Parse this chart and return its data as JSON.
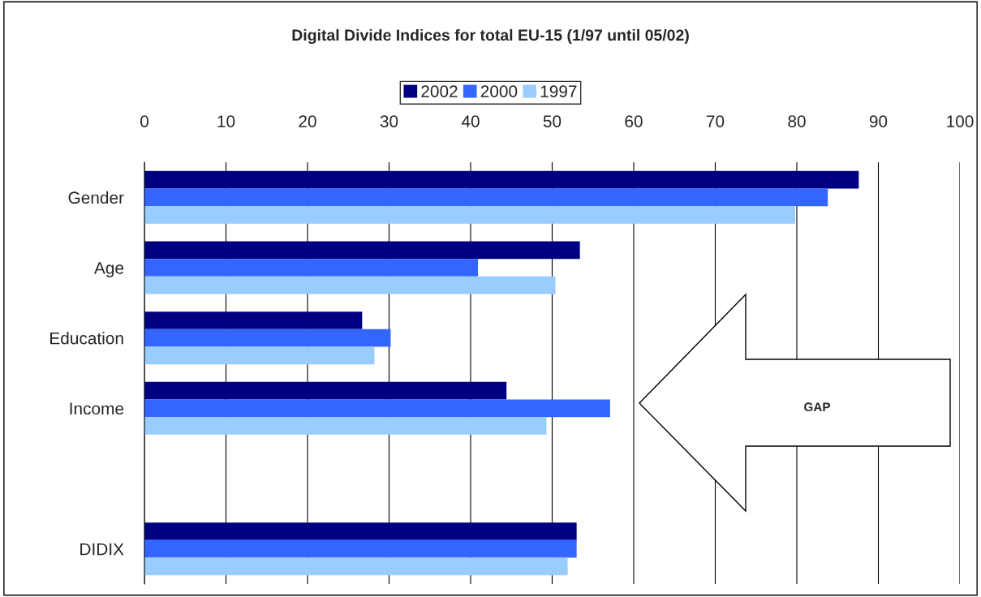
{
  "chart_data": {
    "type": "bar",
    "orientation": "horizontal",
    "title": "Digital Divide Indices for total EU-15 (1/97 until 05/02)",
    "categories": [
      "Gender",
      "Age",
      "Education",
      "Income",
      null,
      "DIDIX"
    ],
    "series": [
      {
        "name": "2002",
        "color": "#000080",
        "values": [
          87.6,
          53.4,
          26.7,
          44.4,
          null,
          53.0
        ]
      },
      {
        "name": "2000",
        "color": "#3366ff",
        "values": [
          83.8,
          40.9,
          30.2,
          57.1,
          null,
          53.0
        ]
      },
      {
        "name": "1997",
        "color": "#99ccff",
        "values": [
          79.8,
          50.4,
          28.2,
          49.3,
          null,
          51.9
        ]
      }
    ],
    "xlim": [
      0,
      100
    ],
    "xticks": [
      0,
      10,
      20,
      30,
      40,
      50,
      60,
      70,
      80,
      90,
      100
    ],
    "grid": "x",
    "legend": "top",
    "annotations": [
      "GAP"
    ]
  }
}
